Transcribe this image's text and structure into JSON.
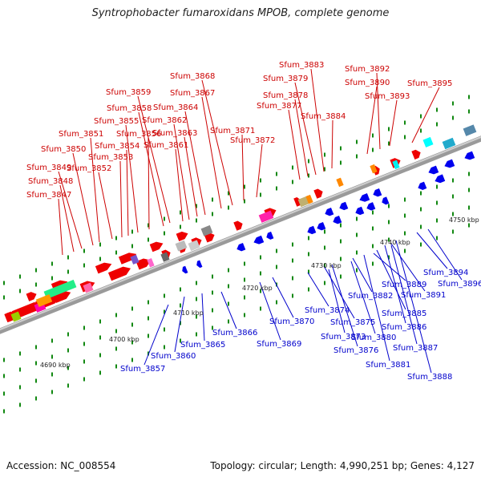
{
  "title": "Syntrophobacter fumaroxidans MPOB, complete genome",
  "accession": "Accession: NC_008554",
  "summary": "Topology: circular; Length: 4,990,251 bp; Genes: 4,127",
  "scale_labels": [
    "4690 kbp",
    "4700 kbp",
    "4710 kbp",
    "4720 kbp",
    "4730 kbp",
    "4740 kbp",
    "4750 kbp"
  ],
  "colors": {
    "forward": "#ee0000",
    "reverse": "#0000ee",
    "top_label": "#cc0000",
    "bottom_label": "#0000cc",
    "backbone": "#9a9a9a",
    "tick": "#118811"
  },
  "top_labels": [
    "Sfum_3847",
    "Sfum_3848",
    "Sfum_3849",
    "Sfum_3850",
    "Sfum_3851",
    "Sfum_3852",
    "Sfum_3853",
    "Sfum_3854",
    "Sfum_3855",
    "Sfum_3856",
    "Sfum_3858",
    "Sfum_3859",
    "Sfum_3861",
    "Sfum_3862",
    "Sfum_3863",
    "Sfum_3864",
    "Sfum_3867",
    "Sfum_3868",
    "Sfum_3871",
    "Sfum_3872",
    "Sfum_3877",
    "Sfum_3878",
    "Sfum_3879",
    "Sfum_3883",
    "Sfum_3884",
    "Sfum_3890",
    "Sfum_3892",
    "Sfum_3893",
    "Sfum_3895"
  ],
  "bottom_labels": [
    "Sfum_3857",
    "Sfum_3860",
    "Sfum_3865",
    "Sfum_3866",
    "Sfum_3869",
    "Sfum_3870",
    "Sfum_3873",
    "Sfum_3874",
    "Sfum_3875",
    "Sfum_3876",
    "Sfum_3880",
    "Sfum_3881",
    "Sfum_3882",
    "Sfum_3885",
    "Sfum_3886",
    "Sfum_3887",
    "Sfum_3888",
    "Sfum_3889",
    "Sfum_3891",
    "Sfum_3894",
    "Sfum_3896"
  ]
}
